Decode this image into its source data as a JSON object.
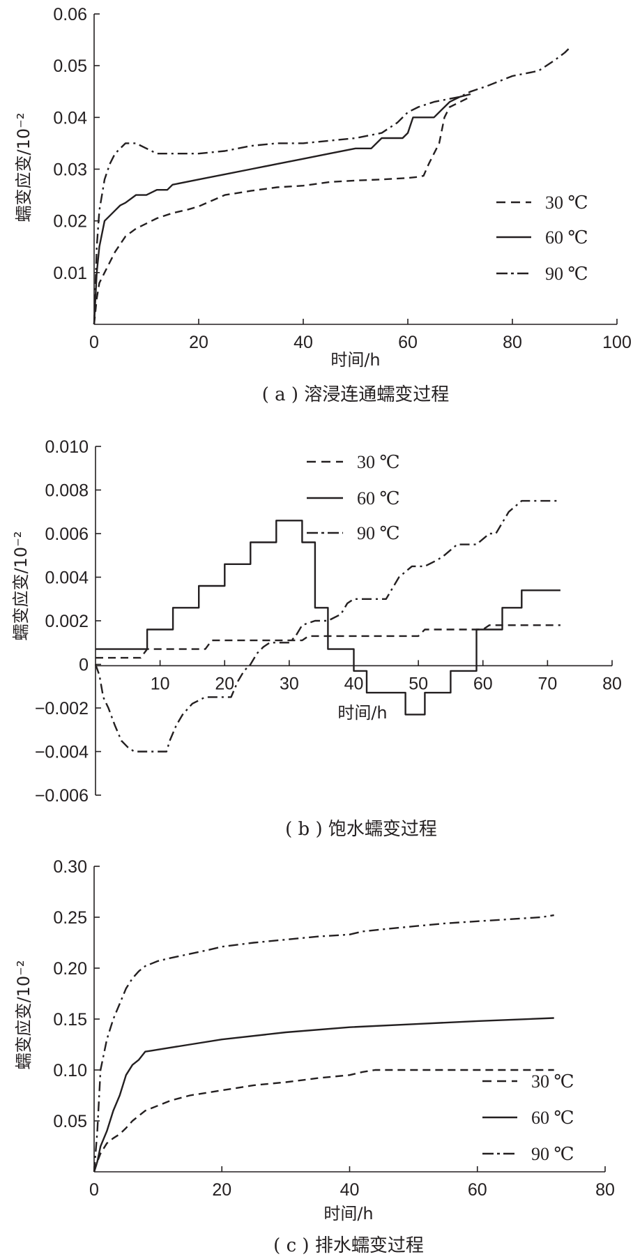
{
  "chart_data": [
    {
      "type": "line",
      "caption": "( a ) 溶浸连通蠕变过程",
      "xlabel": "时间/h",
      "ylabel": "蠕变应变/10⁻²",
      "xlim": [
        0,
        100
      ],
      "ylim": [
        0,
        0.06
      ],
      "xticks": [
        "0",
        "20",
        "40",
        "60",
        "80",
        "100"
      ],
      "yticks": [
        "0.06",
        "0.05",
        "0.04",
        "0.03",
        "0.02",
        "0.01"
      ],
      "legend_position": "right",
      "series": [
        {
          "name": "30 ℃",
          "style": "dashed",
          "x": [
            0,
            0.5,
            1,
            2,
            3,
            4,
            5,
            6,
            8,
            10,
            12,
            15,
            18,
            20,
            25,
            30,
            35,
            40,
            45,
            50,
            55,
            60,
            62,
            63,
            64,
            65,
            66,
            67,
            68,
            72
          ],
          "y": [
            0,
            0.005,
            0.008,
            0.01,
            0.012,
            0.014,
            0.0155,
            0.017,
            0.0185,
            0.0195,
            0.0205,
            0.0215,
            0.0222,
            0.0228,
            0.025,
            0.0258,
            0.0265,
            0.0268,
            0.0275,
            0.0278,
            0.028,
            0.0283,
            0.0285,
            0.0287,
            0.031,
            0.033,
            0.035,
            0.04,
            0.042,
            0.044
          ]
        },
        {
          "name": "60 ℃",
          "style": "solid",
          "x": [
            0,
            0.5,
            1,
            2,
            3,
            4,
            5,
            6,
            8,
            10,
            12,
            14,
            15,
            20,
            25,
            30,
            35,
            40,
            45,
            50,
            53,
            55,
            59,
            60,
            61,
            65,
            66,
            67,
            68,
            70,
            72
          ],
          "y": [
            0,
            0.01,
            0.015,
            0.02,
            0.021,
            0.022,
            0.023,
            0.0235,
            0.025,
            0.025,
            0.026,
            0.026,
            0.027,
            0.028,
            0.029,
            0.03,
            0.031,
            0.032,
            0.033,
            0.034,
            0.034,
            0.036,
            0.036,
            0.037,
            0.04,
            0.04,
            0.041,
            0.042,
            0.043,
            0.044,
            0.0445
          ]
        },
        {
          "name": "90 ℃",
          "style": "dashdot",
          "x": [
            0,
            0.5,
            1,
            2,
            3,
            4,
            5,
            6,
            8,
            10,
            12,
            15,
            20,
            25,
            30,
            35,
            40,
            45,
            50,
            55,
            58,
            60,
            62,
            65,
            70,
            72,
            75,
            80,
            85,
            88,
            90,
            91
          ],
          "y": [
            0,
            0.015,
            0.022,
            0.028,
            0.031,
            0.033,
            0.034,
            0.035,
            0.035,
            0.034,
            0.033,
            0.033,
            0.033,
            0.0335,
            0.0345,
            0.035,
            0.035,
            0.0355,
            0.036,
            0.037,
            0.039,
            0.041,
            0.042,
            0.043,
            0.044,
            0.045,
            0.046,
            0.048,
            0.049,
            0.051,
            0.0525,
            0.0535
          ]
        }
      ]
    },
    {
      "type": "line",
      "caption": "( b ) 饱水蠕变过程",
      "xlabel": "时间/h",
      "ylabel": "蠕变应变/10⁻²",
      "xlim": [
        0,
        80
      ],
      "ylim": [
        -0.006,
        0.01
      ],
      "xticks": [
        "10",
        "20",
        "30",
        "40",
        "50",
        "60",
        "70",
        "80"
      ],
      "yticks": [
        "0.010",
        "0.008",
        "0.006",
        "0.004",
        "0.002",
        "0",
        "−0.002",
        "−0.004",
        "−0.006"
      ],
      "legend_position": "top-center",
      "series": [
        {
          "name": "30 ℃",
          "style": "dashed",
          "x": [
            0,
            7,
            8,
            17,
            18,
            27,
            28,
            32,
            33,
            37,
            38,
            50,
            51,
            60,
            61,
            72
          ],
          "y": [
            0.0003,
            0.0003,
            0.0007,
            0.0007,
            0.0011,
            0.0011,
            0.0011,
            0.0011,
            0.0013,
            0.0013,
            0.0013,
            0.0013,
            0.0016,
            0.0016,
            0.0018,
            0.0018
          ]
        },
        {
          "name": "60 ℃",
          "style": "solid",
          "x": [
            0,
            8,
            8,
            12,
            12,
            16,
            16,
            20,
            20,
            24,
            24,
            28,
            28,
            32,
            32,
            34,
            34,
            36,
            36,
            40,
            40,
            42,
            42,
            48,
            48,
            51,
            51,
            55,
            55,
            59,
            59,
            63,
            63,
            66,
            66,
            72
          ],
          "y": [
            0.0007,
            0.0007,
            0.0016,
            0.0016,
            0.0026,
            0.0026,
            0.0036,
            0.0036,
            0.0046,
            0.0046,
            0.0056,
            0.0056,
            0.0066,
            0.0066,
            0.0056,
            0.0056,
            0.0026,
            0.0026,
            0.0007,
            0.0007,
            -0.0003,
            -0.0003,
            -0.0013,
            -0.0013,
            -0.0023,
            -0.0023,
            -0.0013,
            -0.0013,
            -0.0003,
            -0.0003,
            0.0016,
            0.0016,
            0.0026,
            0.0026,
            0.0034,
            0.0034
          ]
        },
        {
          "name": "90 ℃",
          "style": "dashdot",
          "x": [
            0,
            0.6,
            1.2,
            2,
            3,
            4,
            5,
            6,
            11,
            11.5,
            12.5,
            13.5,
            15,
            17,
            21,
            22,
            23,
            24,
            25,
            26,
            27,
            30,
            31,
            32,
            34,
            36,
            38,
            39,
            40,
            45,
            46,
            47,
            49,
            51,
            53,
            54,
            56,
            59,
            61,
            62,
            63,
            64,
            66,
            72
          ],
          "y": [
            0,
            -0.0005,
            -0.0015,
            -0.002,
            -0.0028,
            -0.0035,
            -0.0038,
            -0.004,
            -0.004,
            -0.0035,
            -0.0028,
            -0.0023,
            -0.0018,
            -0.0015,
            -0.0015,
            -0.0008,
            -0.0003,
            0,
            0.0005,
            0.0008,
            0.001,
            0.001,
            0.0013,
            0.0018,
            0.002,
            0.002,
            0.0023,
            0.0028,
            0.003,
            0.003,
            0.0035,
            0.004,
            0.0045,
            0.0045,
            0.0048,
            0.005,
            0.0055,
            0.0055,
            0.006,
            0.006,
            0.0065,
            0.007,
            0.0075,
            0.0075
          ]
        }
      ]
    },
    {
      "type": "line",
      "caption": "( c ) 排水蠕变过程",
      "xlabel": "时间/h",
      "ylabel": "蠕变应变/10⁻²",
      "xlim": [
        0,
        80
      ],
      "ylim": [
        0,
        0.3
      ],
      "xticks": [
        "0",
        "20",
        "40",
        "60",
        "80"
      ],
      "yticks": [
        "0.30",
        "0.25",
        "0.20",
        "0.15",
        "0.10",
        "0.05"
      ],
      "legend_position": "bottom-right",
      "series": [
        {
          "name": "30 ℃",
          "style": "dashed",
          "x": [
            0,
            0.5,
            1,
            2,
            3,
            4,
            5,
            6,
            8,
            10,
            12,
            15,
            20,
            25,
            30,
            35,
            40,
            42,
            44,
            50,
            60,
            72
          ],
          "y": [
            0,
            0.01,
            0.018,
            0.028,
            0.033,
            0.037,
            0.043,
            0.05,
            0.06,
            0.065,
            0.07,
            0.075,
            0.08,
            0.085,
            0.088,
            0.092,
            0.095,
            0.098,
            0.1,
            0.1,
            0.1,
            0.1
          ]
        },
        {
          "name": "60 ℃",
          "style": "solid",
          "x": [
            0,
            0.5,
            1,
            2,
            3,
            4,
            5,
            6,
            7,
            8,
            9,
            10,
            15,
            20,
            30,
            40,
            50,
            60,
            72
          ],
          "y": [
            0,
            0.01,
            0.025,
            0.04,
            0.06,
            0.075,
            0.095,
            0.105,
            0.11,
            0.118,
            0.119,
            0.12,
            0.125,
            0.13,
            0.137,
            0.142,
            0.145,
            0.148,
            0.151
          ]
        },
        {
          "name": "90 ℃",
          "style": "dashdot",
          "x": [
            0,
            0.5,
            1,
            2,
            3,
            4,
            5,
            6,
            7,
            8,
            10,
            12,
            15,
            18,
            20,
            25,
            30,
            35,
            40,
            42,
            45,
            50,
            55,
            60,
            65,
            70,
            72
          ],
          "y": [
            0,
            0.04,
            0.1,
            0.13,
            0.15,
            0.165,
            0.18,
            0.19,
            0.197,
            0.202,
            0.207,
            0.21,
            0.214,
            0.218,
            0.221,
            0.225,
            0.228,
            0.231,
            0.233,
            0.236,
            0.238,
            0.241,
            0.244,
            0.246,
            0.248,
            0.25,
            0.252
          ]
        }
      ]
    }
  ]
}
